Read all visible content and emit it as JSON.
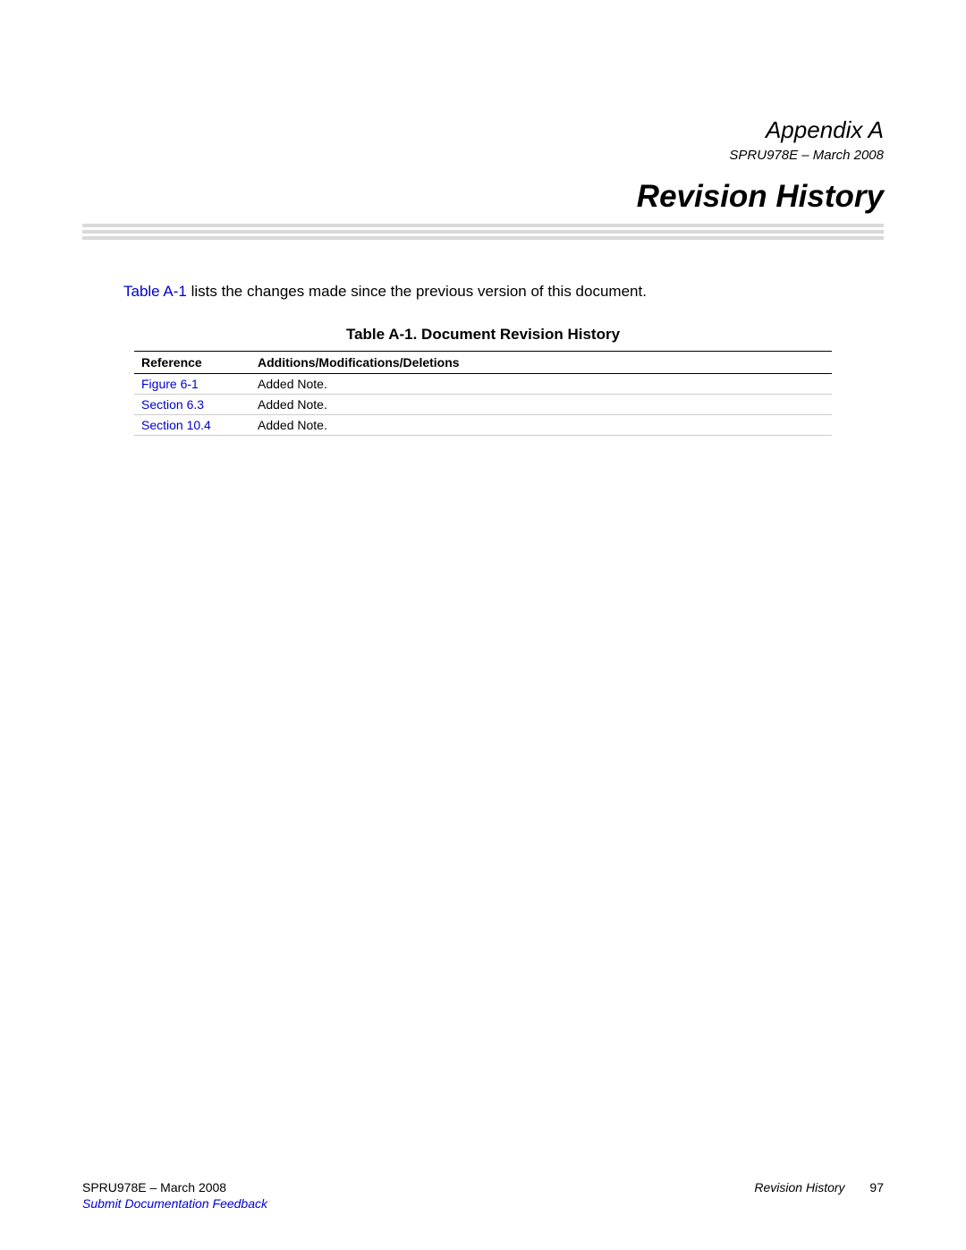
{
  "header": {
    "appendix_label": "Appendix A",
    "doc_id": "SPRU978E – March 2008",
    "title": "Revision History"
  },
  "intro": {
    "link_text": "Table A-1",
    "rest_text": " lists the changes made since the previous version of this document."
  },
  "table": {
    "caption": "Table A-1. Document Revision History",
    "columns": [
      "Reference",
      "Additions/Modifications/Deletions"
    ],
    "rows": [
      {
        "ref": "Figure 6-1",
        "change": "Added Note."
      },
      {
        "ref": "Section 6.3",
        "change": "Added Note."
      },
      {
        "ref": "Section 10.4",
        "change": "Added Note."
      }
    ]
  },
  "footer": {
    "left": "SPRU978E – March 2008",
    "right_title": "Revision History",
    "page_number": "97",
    "feedback_link": "Submit Documentation Feedback"
  },
  "colors": {
    "link": "#0000d0",
    "rule": "#d9d9d9",
    "row_border": "#cccccc",
    "text": "#000000",
    "background": "#ffffff"
  }
}
